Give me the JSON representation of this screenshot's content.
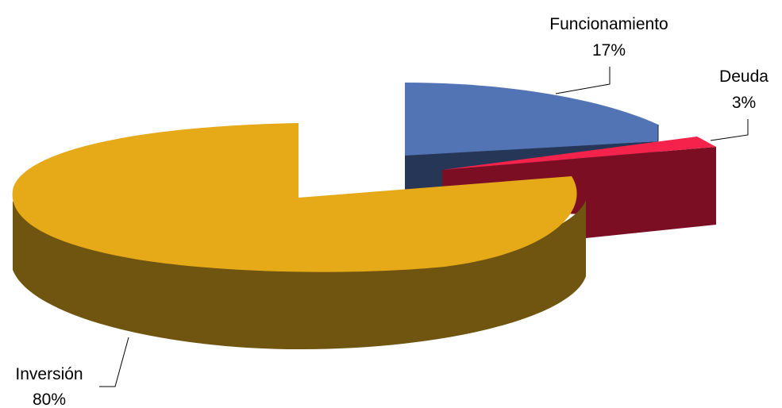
{
  "chart_data": {
    "type": "pie",
    "style": "3d-exploded",
    "title": "",
    "legend": "none",
    "slices": [
      {
        "name": "Funcionamiento",
        "label": "17%",
        "value": 17,
        "color_top": "#5274b4",
        "color_side": "#253656"
      },
      {
        "name": "Deuda",
        "label": "3%",
        "value": 3,
        "color_top": "#f5234b",
        "color_side": "#7b0e23"
      },
      {
        "name": "Inversión",
        "label": "80%",
        "value": 80,
        "color_top": "#e6a917",
        "color_side": "#6f5510"
      }
    ]
  }
}
